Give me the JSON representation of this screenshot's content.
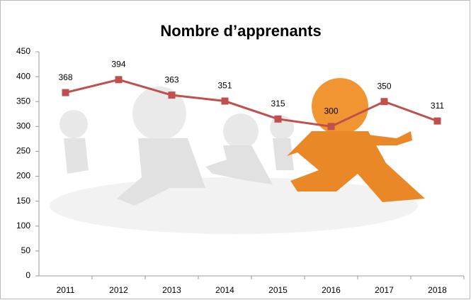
{
  "chart_data": {
    "type": "line",
    "title": "Nombre d’apprenants",
    "categories": [
      "2011",
      "2012",
      "2013",
      "2014",
      "2015",
      "2016",
      "2017",
      "2018"
    ],
    "values": [
      368,
      394,
      363,
      351,
      315,
      300,
      350,
      311
    ],
    "color": "#c0504d",
    "ylim": [
      0,
      450
    ],
    "yticks": [
      0,
      50,
      100,
      150,
      200,
      250,
      300,
      350,
      400,
      450
    ],
    "grid": false
  }
}
